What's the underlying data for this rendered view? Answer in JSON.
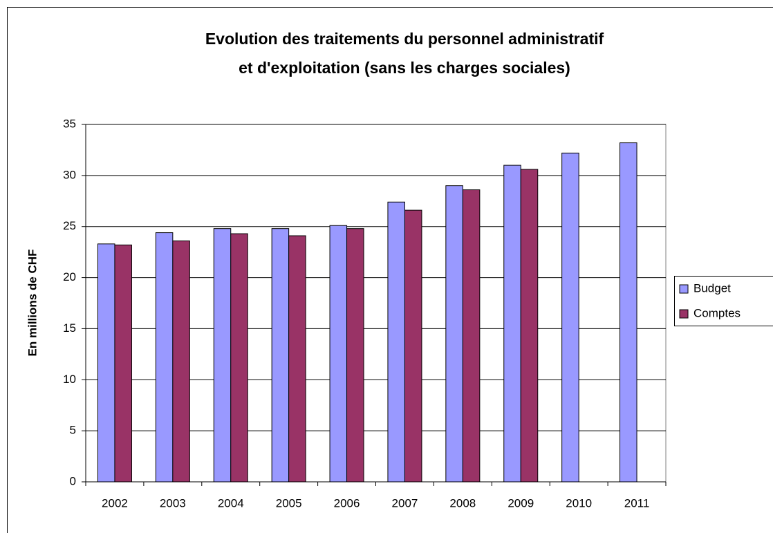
{
  "chart_data": {
    "type": "bar",
    "title": [
      "Evolution des traitements du personnel administratif",
      "et d'exploitation (sans les charges sociales)"
    ],
    "y_label": "En millions de CHF",
    "categories": [
      "2002",
      "2003",
      "2004",
      "2005",
      "2006",
      "2007",
      "2008",
      "2009",
      "2010",
      "2011"
    ],
    "series": [
      {
        "name": "Budget",
        "color": "#9999ff",
        "values": [
          23.3,
          24.4,
          24.8,
          24.8,
          25.1,
          27.4,
          29.0,
          31.0,
          32.2,
          33.2
        ]
      },
      {
        "name": "Comptes",
        "color": "#993366",
        "values": [
          23.2,
          23.6,
          24.3,
          24.1,
          24.8,
          26.6,
          28.6,
          30.6,
          null,
          null
        ]
      }
    ],
    "ylim": [
      0,
      35
    ],
    "yticks": [
      0,
      5,
      10,
      15,
      20,
      25,
      30,
      35
    ],
    "grid": true,
    "legend": "right"
  }
}
